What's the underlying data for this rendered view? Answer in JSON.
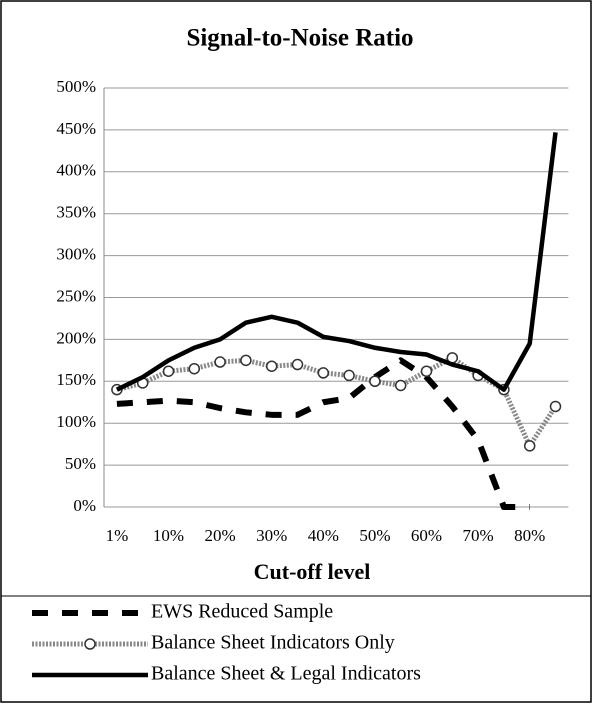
{
  "chart_data": {
    "type": "line",
    "title": "Signal-to-Noise Ratio",
    "x_label": "Cut-off level",
    "categories": [
      "1%",
      null,
      "10%",
      null,
      "20%",
      null,
      "30%",
      null,
      "40%",
      null,
      "50%",
      null,
      "60%",
      null,
      "70%",
      null,
      "80%",
      null
    ],
    "series": [
      {
        "name": "EWS Reduced Sample",
        "color": "#000000",
        "style": "dashed",
        "values": [
          123,
          125,
          127,
          125,
          118,
          113,
          110,
          110,
          125,
          130,
          155,
          175,
          155,
          120,
          80,
          0,
          0,
          null
        ]
      },
      {
        "name": "Balance Sheet Indicators Only",
        "color": "#888888",
        "style": "dotted-circles",
        "values": [
          140,
          148,
          162,
          165,
          173,
          175,
          168,
          170,
          160,
          157,
          150,
          145,
          162,
          178,
          157,
          140,
          73,
          120
        ]
      },
      {
        "name": "Balance Sheet & Legal Indicators",
        "color": "#000000",
        "style": "solid",
        "values": [
          140,
          155,
          175,
          190,
          200,
          220,
          227,
          220,
          203,
          198,
          190,
          185,
          182,
          170,
          162,
          140,
          195,
          447
        ]
      }
    ],
    "ylim": [
      0,
      500
    ],
    "yticks": [
      {
        "value": 0,
        "label": "0%"
      },
      {
        "value": 50,
        "label": "50%"
      },
      {
        "value": 100,
        "label": "100%"
      },
      {
        "value": 150,
        "label": "150%"
      },
      {
        "value": 200,
        "label": "200%"
      },
      {
        "value": 250,
        "label": "250%"
      },
      {
        "value": 300,
        "label": "300%"
      },
      {
        "value": 350,
        "label": "350%"
      },
      {
        "value": 400,
        "label": "400%"
      },
      {
        "value": 450,
        "label": "450%"
      },
      {
        "value": 500,
        "label": "500%"
      }
    ],
    "grid": true,
    "legend": "bottom"
  }
}
